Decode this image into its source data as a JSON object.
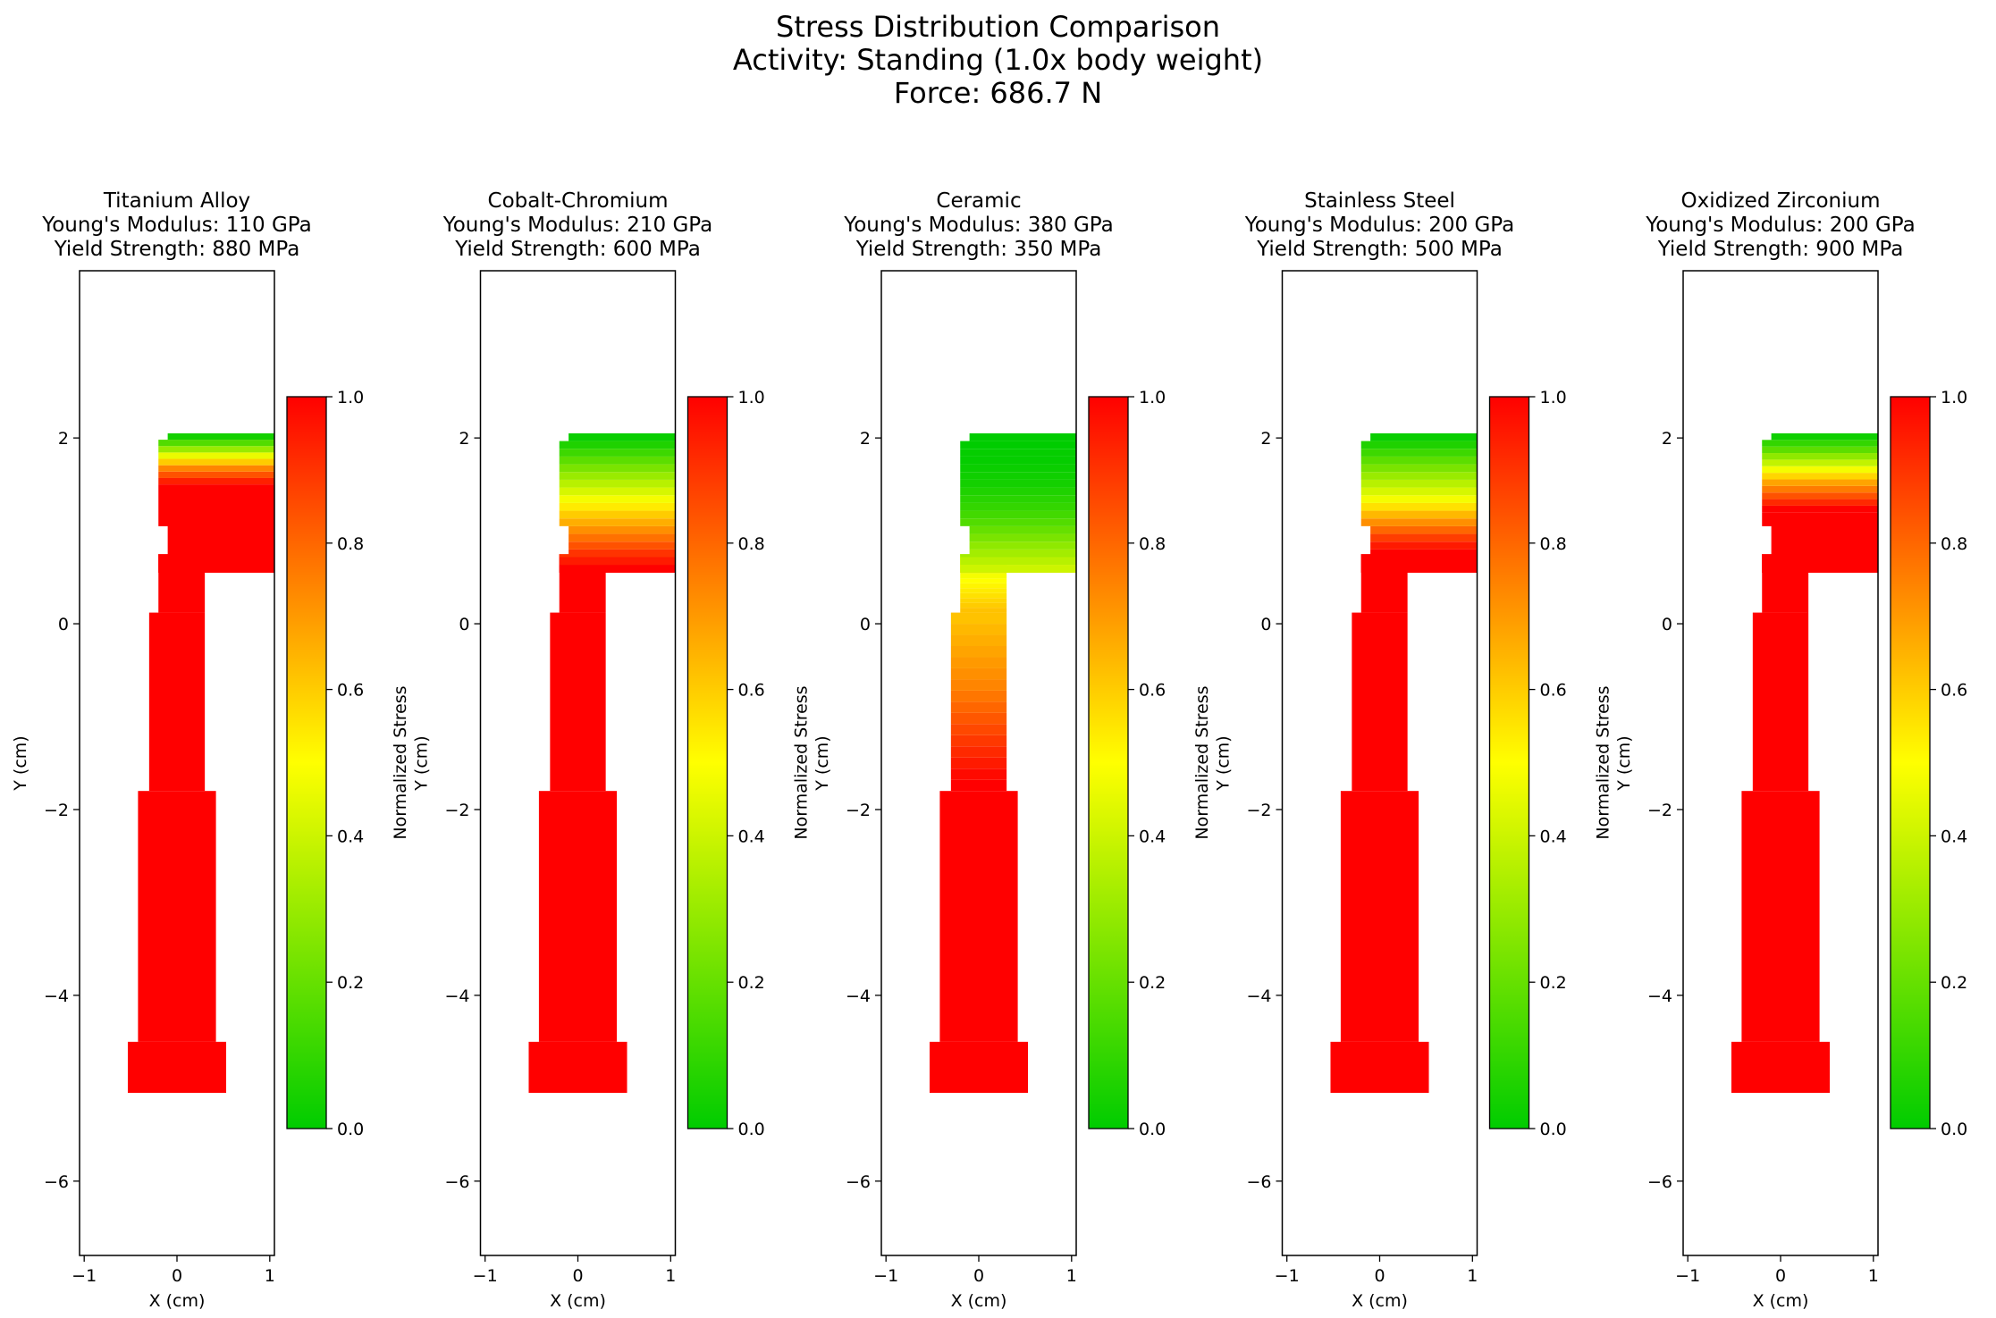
{
  "figure": {
    "title_lines": [
      "Stress Distribution Comparison",
      "Activity: Standing (1.0x body weight)",
      "Force: 686.7 N"
    ]
  },
  "colors": {
    "colormap": [
      "#00cc00",
      "#ffff00",
      "#ff8000",
      "#ff0000"
    ],
    "axes": "#000000",
    "background": "#ffffff"
  },
  "chart_data": [
    {
      "type": "heatmap",
      "title_lines": [
        "Titanium Alloy",
        "Young's Modulus: 110 GPa",
        "Yield Strength: 880 MPa"
      ],
      "xlabel": "X (cm)",
      "ylabel": "Y (cm)",
      "xlim": [
        -1.05,
        1.05
      ],
      "ylim": [
        -6.8,
        3.8
      ],
      "xticks": [
        -1,
        0,
        1
      ],
      "yticks": [
        -6,
        -4,
        -2,
        0,
        2
      ],
      "colorbar": {
        "label": "Normalized Stress",
        "range": [
          0,
          1
        ],
        "ticks": [
          0.0,
          0.2,
          0.4,
          0.6,
          0.8,
          1.0
        ]
      },
      "top_band": {
        "y_bottom": 1.5,
        "values": [
          0.94,
          0.84,
          0.74,
          0.6,
          0.46,
          0.3,
          0.16,
          0.04
        ]
      },
      "lower_band": {
        "y_bottom": 0.55,
        "y_top": 1.5,
        "value": 1.0
      },
      "neck": {
        "value": 1.0
      },
      "stem_upper": {
        "value": 1.0
      },
      "stem_lower": {
        "value": 1.0
      },
      "base": {
        "value": 1.0
      }
    },
    {
      "type": "heatmap",
      "title_lines": [
        "Cobalt-Chromium",
        "Young's Modulus: 210 GPa",
        "Yield Strength: 600 MPa"
      ],
      "xlabel": "X (cm)",
      "ylabel": "Y (cm)",
      "xlim": [
        -1.05,
        1.05
      ],
      "ylim": [
        -6.8,
        3.8
      ],
      "xticks": [
        -1,
        0,
        1
      ],
      "yticks": [
        -6,
        -4,
        -2,
        0,
        2
      ],
      "colorbar": {
        "label": "Normalized Stress",
        "range": [
          0,
          1
        ],
        "ticks": [
          0.0,
          0.2,
          0.4,
          0.6,
          0.8,
          1.0
        ]
      },
      "top_band": {
        "y_bottom": 0.55,
        "values": [
          1.0,
          0.95,
          0.9,
          0.84,
          0.78,
          0.72,
          0.66,
          0.6,
          0.54,
          0.48,
          0.42,
          0.36,
          0.3,
          0.24,
          0.18,
          0.12,
          0.06,
          0.02
        ]
      },
      "lower_band": null,
      "neck": {
        "value": 1.0
      },
      "stem_upper": {
        "value": 1.0
      },
      "stem_lower": {
        "value": 1.0
      },
      "base": {
        "value": 1.0
      }
    },
    {
      "type": "heatmap",
      "title_lines": [
        "Ceramic",
        "Young's Modulus: 380 GPa",
        "Yield Strength: 350 MPa"
      ],
      "xlabel": "X (cm)",
      "ylabel": "Y (cm)",
      "xlim": [
        -1.05,
        1.05
      ],
      "ylim": [
        -6.8,
        3.8
      ],
      "xticks": [
        -1,
        0,
        1
      ],
      "yticks": [
        -6,
        -4,
        -2,
        0,
        2
      ],
      "colorbar": {
        "label": "Normalized Stress",
        "range": [
          0,
          1
        ],
        "ticks": [
          0.0,
          0.2,
          0.4,
          0.6,
          0.8,
          1.0
        ]
      },
      "top_band": {
        "y_bottom": 0.55,
        "values": [
          0.4,
          0.36,
          0.32,
          0.28,
          0.24,
          0.2,
          0.16,
          0.13,
          0.1,
          0.08,
          0.06,
          0.04,
          0.03,
          0.02,
          0.01,
          0.01,
          0.0,
          0.0
        ]
      },
      "lower_band": null,
      "neck": {
        "values": [
          0.62,
          0.6,
          0.58,
          0.56,
          0.54,
          0.52,
          0.5,
          0.48,
          0.46,
          0.44,
          0.42,
          0.41
        ]
      },
      "stem_upper": {
        "values": [
          1.0,
          0.98,
          0.95,
          0.92,
          0.89,
          0.86,
          0.83,
          0.8,
          0.77,
          0.74,
          0.72,
          0.7,
          0.68,
          0.66,
          0.64,
          0.62
        ]
      },
      "stem_lower": {
        "value": 1.0
      },
      "base": {
        "value": 1.0
      }
    },
    {
      "type": "heatmap",
      "title_lines": [
        "Stainless Steel",
        "Young's Modulus: 200 GPa",
        "Yield Strength: 500 MPa"
      ],
      "xlabel": "X (cm)",
      "ylabel": "Y (cm)",
      "xlim": [
        -1.05,
        1.05
      ],
      "ylim": [
        -6.8,
        3.8
      ],
      "xticks": [
        -1,
        0,
        1
      ],
      "yticks": [
        -6,
        -4,
        -2,
        0,
        2
      ],
      "colorbar": {
        "label": "Normalized Stress",
        "range": [
          0,
          1
        ],
        "ticks": [
          0.0,
          0.2,
          0.4,
          0.6,
          0.8,
          1.0
        ]
      },
      "top_band": {
        "y_bottom": 0.55,
        "values": [
          1.0,
          1.0,
          1.0,
          0.95,
          0.88,
          0.8,
          0.72,
          0.64,
          0.56,
          0.48,
          0.42,
          0.36,
          0.3,
          0.24,
          0.18,
          0.12,
          0.06,
          0.02
        ]
      },
      "lower_band": null,
      "neck": {
        "value": 1.0
      },
      "stem_upper": {
        "value": 1.0
      },
      "stem_lower": {
        "value": 1.0
      },
      "base": {
        "value": 1.0
      }
    },
    {
      "type": "heatmap",
      "title_lines": [
        "Oxidized Zirconium",
        "Young's Modulus: 200 GPa",
        "Yield Strength: 900 MPa"
      ],
      "xlabel": "X (cm)",
      "ylabel": "Y (cm)",
      "xlim": [
        -1.05,
        1.05
      ],
      "ylim": [
        -6.8,
        3.8
      ],
      "xticks": [
        -1,
        0,
        1
      ],
      "yticks": [
        -6,
        -4,
        -2,
        0,
        2
      ],
      "colorbar": {
        "label": "Normalized Stress",
        "range": [
          0,
          1
        ],
        "ticks": [
          0.0,
          0.2,
          0.4,
          0.6,
          0.8,
          1.0
        ]
      },
      "top_band": {
        "y_bottom": 1.2,
        "values": [
          1.0,
          0.92,
          0.84,
          0.76,
          0.68,
          0.58,
          0.48,
          0.38,
          0.28,
          0.18,
          0.1,
          0.03
        ]
      },
      "lower_band": {
        "y_bottom": 0.55,
        "y_top": 1.2,
        "value": 1.0
      },
      "neck": {
        "value": 1.0
      },
      "stem_upper": {
        "value": 1.0
      },
      "stem_lower": {
        "value": 1.0
      },
      "base": {
        "value": 1.0
      }
    }
  ]
}
